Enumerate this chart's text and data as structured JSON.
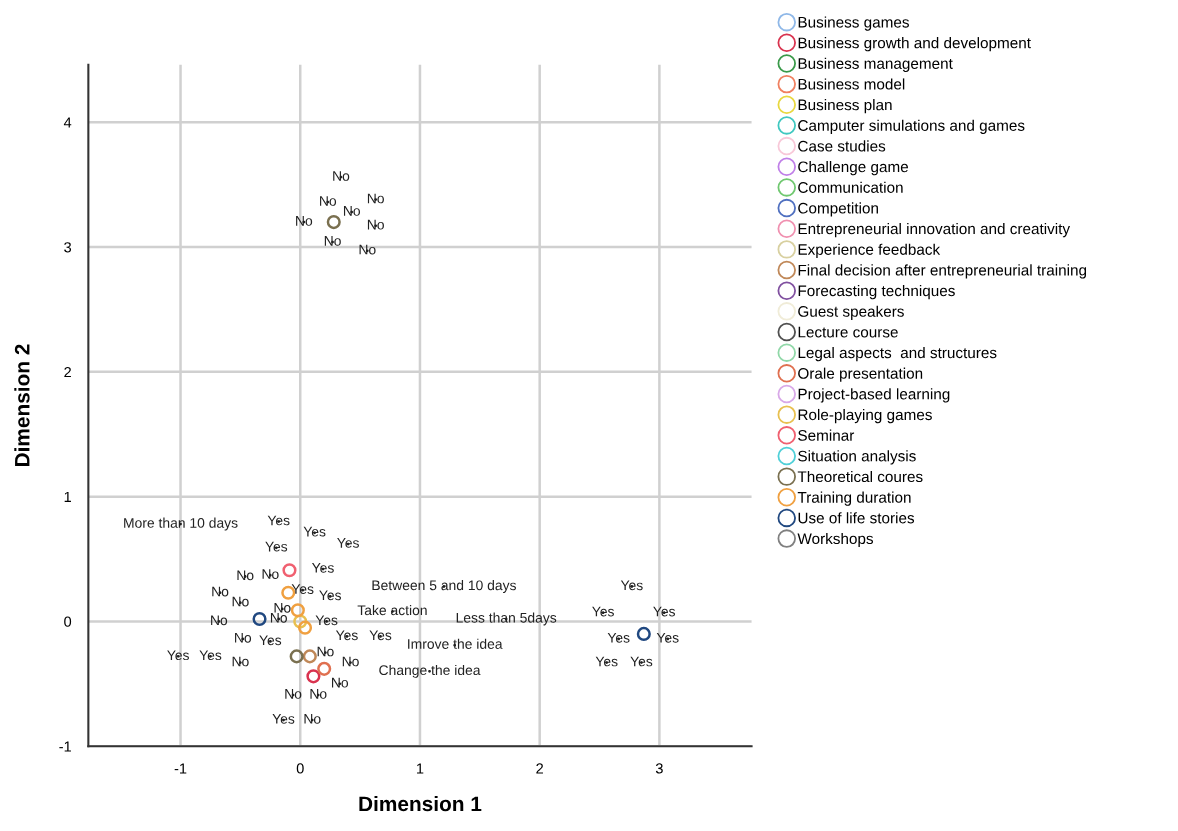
{
  "chart_data": {
    "type": "scatter",
    "xlabel": "Dimension 1",
    "ylabel": "Dimension 2",
    "xlim": [
      -1.77,
      3.77
    ],
    "ylim": [
      -1.0,
      4.46
    ],
    "xticks": [
      -1,
      0,
      1,
      2,
      3
    ],
    "yticks": [
      -1,
      0,
      1,
      2,
      3,
      4
    ],
    "grid": true,
    "legend": "right",
    "marker": "circle",
    "series": [
      {
        "name": "Business games",
        "color": "#8fb8e8"
      },
      {
        "name": "Business growth and development",
        "color": "#d9334f",
        "x": [
          0.11
        ],
        "values": [
          -0.44
        ]
      },
      {
        "name": "Business management",
        "color": "#3a9a4a"
      },
      {
        "name": "Business model",
        "color": "#f08060"
      },
      {
        "name": "Business plan",
        "color": "#e8d840"
      },
      {
        "name": "Camputer simulations and games",
        "color": "#40c8c0"
      },
      {
        "name": "Case studies",
        "color": "#f8c8d8"
      },
      {
        "name": "Challenge game",
        "color": "#c080e8"
      },
      {
        "name": "Communication",
        "color": "#70c870"
      },
      {
        "name": "Competition",
        "color": "#5070c0"
      },
      {
        "name": "Entrepreneurial innovation and creativity",
        "color": "#f090b0"
      },
      {
        "name": "Experience feedback",
        "color": "#d8d0a0"
      },
      {
        "name": "Final decision after entrepreneurial training",
        "color": "#c08858",
        "x": [
          0.08
        ],
        "values": [
          -0.28
        ]
      },
      {
        "name": "Forecasting techniques",
        "color": "#8050a0"
      },
      {
        "name": "Guest speakers",
        "color": "#f0ecd8"
      },
      {
        "name": "Lecture course",
        "color": "#505050"
      },
      {
        "name": "Legal aspects  and structures",
        "color": "#90d8a8"
      },
      {
        "name": "Orale presentation",
        "color": "#e07050",
        "x": [
          0.2
        ],
        "values": [
          -0.38
        ]
      },
      {
        "name": "Project-based learning",
        "color": "#d8a8e8"
      },
      {
        "name": "Role-playing games",
        "color": "#e8c050",
        "x": [
          0.0
        ],
        "values": [
          0.0
        ]
      },
      {
        "name": "Seminar",
        "color": "#f06070",
        "x": [
          -0.09
        ],
        "values": [
          0.41
        ]
      },
      {
        "name": "Situation analysis",
        "color": "#50d0d8"
      },
      {
        "name": "Theoretical coures",
        "color": "#7a7050",
        "x": [
          -0.03,
          0.28
        ],
        "values": [
          -0.28,
          3.2
        ]
      },
      {
        "name": "Training duration",
        "color": "#f0a040",
        "x": [
          -0.1,
          -0.02,
          0.04
        ],
        "values": [
          0.23,
          0.09,
          -0.05
        ]
      },
      {
        "name": "Use of life stories",
        "color": "#204880",
        "x": [
          -0.34,
          2.87
        ],
        "values": [
          0.02,
          -0.1
        ]
      },
      {
        "name": "Workshops",
        "color": "#808080"
      },
      {
        "color": "#222222",
        "marker": "none",
        "x": [
          -1.0,
          -0.18,
          0.12,
          0.4,
          -0.2,
          0.19,
          -0.46,
          -0.25,
          0.02,
          1.2,
          -0.67,
          -0.5,
          0.25,
          -0.15,
          0.77,
          1.72,
          -0.68,
          -0.18,
          0.22,
          -0.48,
          -0.25,
          0.39,
          0.67,
          1.29,
          -1.02,
          -0.75,
          -0.5,
          0.21,
          0.42,
          1.08,
          0.33,
          -0.06,
          0.15,
          -0.14,
          0.1,
          0.34,
          0.23,
          0.43,
          0.63,
          0.03,
          0.63,
          0.27,
          0.56,
          2.77,
          2.53,
          3.04,
          2.66,
          3.07,
          2.56,
          2.85
        ],
        "values": [
          0.78,
          0.8,
          0.71,
          0.62,
          0.59,
          0.42,
          0.36,
          0.37,
          0.25,
          0.28,
          0.23,
          0.15,
          0.2,
          0.1,
          0.08,
          0.02,
          0.0,
          0.02,
          0.0,
          -0.14,
          -0.16,
          -0.12,
          -0.12,
          -0.19,
          -0.28,
          -0.28,
          -0.33,
          -0.25,
          -0.33,
          -0.4,
          -0.5,
          -0.59,
          -0.59,
          -0.79,
          -0.79,
          3.56,
          3.36,
          3.28,
          3.38,
          3.2,
          3.17,
          3.04,
          2.97,
          0.28,
          0.07,
          0.07,
          -0.14,
          -0.14,
          -0.33,
          -0.33
        ],
        "value_labels": [
          "More than 10 days",
          "Yes",
          "Yes",
          "Yes",
          "Yes",
          "Yes",
          "No",
          "No",
          "Yes",
          "Between 5 and 10 days",
          "No",
          "No",
          "Yes",
          "No",
          "Take action",
          "Less than 5days",
          "No",
          "No",
          "Yes",
          "No",
          "Yes",
          "Yes",
          "Yes",
          "Imrove the idea",
          "Yes",
          "Yes",
          "No",
          "No",
          "No",
          "Change the idea",
          "No",
          "No",
          "No",
          "Yes",
          "No",
          "No",
          "No",
          "No",
          "No",
          "No",
          "No",
          "No",
          "No",
          "Yes",
          "Yes",
          "Yes",
          "Yes",
          "Yes",
          "Yes",
          "Yes"
        ]
      }
    ]
  }
}
